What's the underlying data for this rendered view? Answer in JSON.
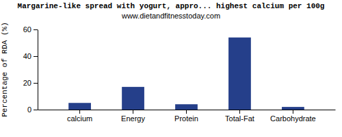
{
  "chart_data": {
    "type": "bar",
    "title": "Margarine-like spread with yogurt, appro... highest calcium per 100g",
    "subtitle": "www.dietandfitnesstoday.com",
    "y_label": "Percentage of RDA (%)",
    "categories": [
      "calcium",
      "Energy",
      "Protein",
      "Total-Fat",
      "Carbohydrate"
    ],
    "values": [
      5,
      17,
      4,
      54,
      2
    ],
    "color": "#253f8a",
    "ylim": [
      0,
      60
    ],
    "yticks": [
      0,
      20,
      40,
      60
    ],
    "grid": false
  }
}
